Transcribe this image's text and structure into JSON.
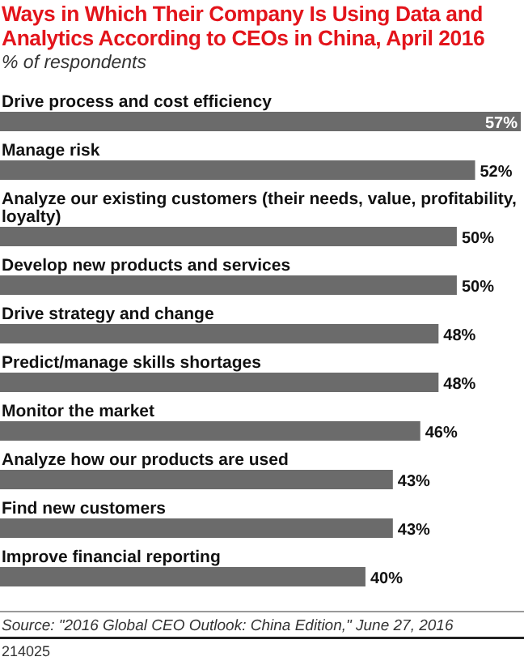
{
  "chart_data": {
    "type": "bar",
    "orientation": "horizontal",
    "title": "Ways in Which Their Company Is Using Data and Analytics According to CEOs in China, April 2016",
    "subtitle": "% of respondents",
    "categories": [
      "Drive process and cost efficiency",
      "Manage risk",
      "Analyze our existing customers (their needs, value, profitability, loyalty)",
      "Develop new products and services",
      "Drive strategy and change",
      "Predict/manage skills shortages",
      "Monitor the market",
      "Analyze how our products are used",
      "Find new customers",
      "Improve financial reporting"
    ],
    "values": [
      57,
      52,
      50,
      50,
      48,
      48,
      46,
      43,
      43,
      40
    ],
    "value_labels": [
      "57%",
      "52%",
      "50%",
      "50%",
      "48%",
      "48%",
      "46%",
      "43%",
      "43%",
      "40%"
    ],
    "color": "#6b6b6b",
    "annotations": [
      "Source: \"2016 Global CEO Outlook: China Edition,\" June 27, 2016",
      "214025"
    ]
  }
}
